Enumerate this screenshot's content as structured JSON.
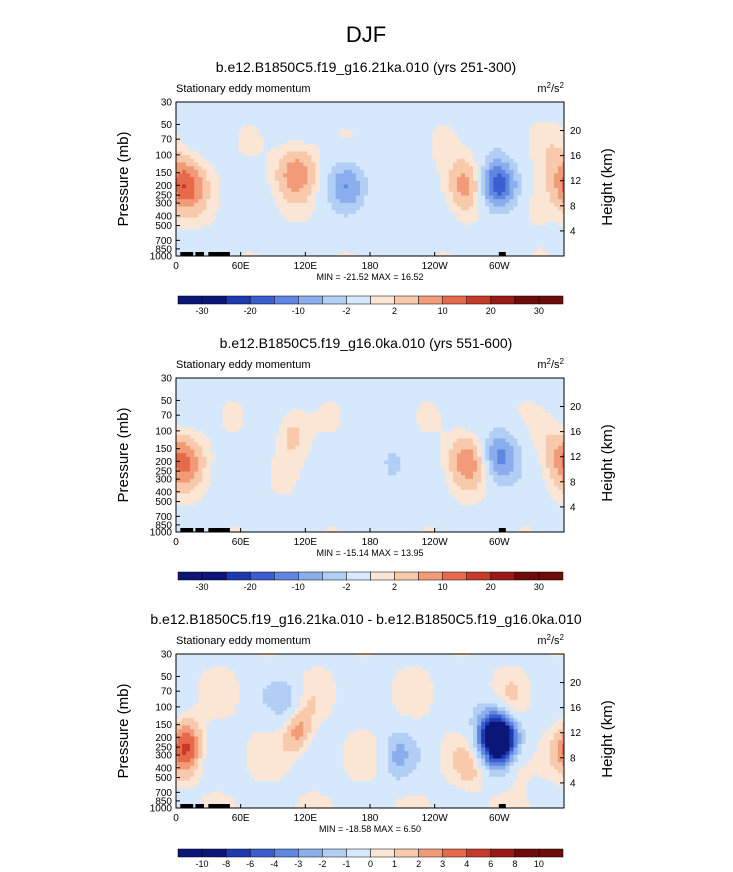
{
  "figure": {
    "title": "DJF"
  },
  "colors": {
    "frame": "#000000",
    "palette_descriptor": "blue-white-red diverging (NCL BlueWhiteOrangeRed style)"
  },
  "chart_data": [
    {
      "type": "heatmap",
      "title": "b.e12.B1850C5.f19_g16.21ka.010 (yrs 251-300)",
      "subtitle_left": "Stationary eddy momentum",
      "units": "m²/s²",
      "units_base": "m",
      "units_exp": "2",
      "units_sep": "/s",
      "units_exp2": "2",
      "xlabel": "",
      "ylabel": "Pressure (mb)",
      "ylabel_right": "Height (km)",
      "x_ticks": [
        "0",
        "60E",
        "120E",
        "180",
        "120W",
        "60W"
      ],
      "xlim": [
        0,
        360
      ],
      "y_ticks": [
        "30",
        "50",
        "70",
        "100",
        "150",
        "200",
        "250",
        "300",
        "400",
        "500",
        "700",
        "850",
        "1000"
      ],
      "y_ticks_right": [
        "20",
        "16",
        "12",
        "8",
        "4"
      ],
      "ylim": [
        1000,
        30
      ],
      "y_scale": "log",
      "minmax_text": "MIN = -21.52  MAX =  16.52",
      "min": -21.52,
      "max": 16.52,
      "contour_levels": [
        "-30",
        "-20",
        "-10",
        "-2",
        "2",
        "10",
        "20",
        "30"
      ],
      "features": [
        {
          "lon": 8,
          "p": 200,
          "value": 16.5,
          "kind": "max"
        },
        {
          "lon": 112,
          "p": 150,
          "value": 12
        },
        {
          "lon": 158,
          "p": 200,
          "value": -12
        },
        {
          "lon": 203,
          "p": 300,
          "value": -4
        },
        {
          "lon": 270,
          "p": 200,
          "value": 12
        },
        {
          "lon": 298,
          "p": 200,
          "value": -21.5,
          "kind": "min"
        },
        {
          "lon": 335,
          "p": 300,
          "value": 4
        },
        {
          "lon": 350,
          "p": 100,
          "value": 3
        }
      ]
    },
    {
      "type": "heatmap",
      "title": "b.e12.B1850C5.f19_g16.0ka.010 (yrs 551-600)",
      "subtitle_left": "Stationary eddy momentum",
      "units": "m²/s²",
      "units_base": "m",
      "units_exp": "2",
      "units_sep": "/s",
      "units_exp2": "2",
      "xlabel": "",
      "ylabel": "Pressure (mb)",
      "ylabel_right": "Height (km)",
      "x_ticks": [
        "0",
        "60E",
        "120E",
        "180",
        "120W",
        "60W"
      ],
      "xlim": [
        0,
        360
      ],
      "y_ticks": [
        "30",
        "50",
        "70",
        "100",
        "150",
        "200",
        "250",
        "300",
        "400",
        "500",
        "700",
        "850",
        "1000"
      ],
      "y_ticks_right": [
        "20",
        "16",
        "12",
        "8",
        "4"
      ],
      "ylim": [
        1000,
        30
      ],
      "y_scale": "log",
      "minmax_text": "MIN = -15.14  MAX =  13.95",
      "min": -15.14,
      "max": 13.95,
      "contour_levels": [
        "-30",
        "-20",
        "-10",
        "-2",
        "2",
        "10",
        "20",
        "30"
      ],
      "features": [
        {
          "lon": 6,
          "p": 200,
          "value": 13.9,
          "kind": "max"
        },
        {
          "lon": 108,
          "p": 110,
          "value": 6
        },
        {
          "lon": 200,
          "p": 220,
          "value": -6
        },
        {
          "lon": 272,
          "p": 200,
          "value": 12
        },
        {
          "lon": 300,
          "p": 180,
          "value": -15.1,
          "kind": "min"
        },
        {
          "lon": 345,
          "p": 120,
          "value": 3
        }
      ]
    },
    {
      "type": "heatmap",
      "title": "b.e12.B1850C5.f19_g16.21ka.010 - b.e12.B1850C5.f19_g16.0ka.010",
      "subtitle_left": "Stationary eddy momentum",
      "units": "m²/s²",
      "units_base": "m",
      "units_exp": "2",
      "units_sep": "/s",
      "units_exp2": "2",
      "xlabel": "",
      "ylabel": "Pressure (mb)",
      "ylabel_right": "Height (km)",
      "x_ticks": [
        "0",
        "60E",
        "120E",
        "180",
        "120W",
        "60W"
      ],
      "xlim": [
        0,
        360
      ],
      "y_ticks": [
        "30",
        "50",
        "70",
        "100",
        "150",
        "200",
        "250",
        "300",
        "400",
        "500",
        "700",
        "850",
        "1000"
      ],
      "y_ticks_right": [
        "20",
        "16",
        "12",
        "8",
        "4"
      ],
      "ylim": [
        1000,
        30
      ],
      "y_scale": "log",
      "minmax_text": "MIN = -18.58  MAX =   6.50",
      "min": -18.58,
      "max": 6.5,
      "contour_levels": [
        "-10",
        "-8",
        "-6",
        "-4",
        "-3",
        "-2",
        "-1",
        "0",
        "1",
        "2",
        "3",
        "4",
        "6",
        "8",
        "10"
      ],
      "features": [
        {
          "lon": 10,
          "p": 250,
          "value": 6.5,
          "kind": "max"
        },
        {
          "lon": 105,
          "p": 100,
          "value": -4
        },
        {
          "lon": 112,
          "p": 160,
          "value": 5.5
        },
        {
          "lon": 205,
          "p": 300,
          "value": -3
        },
        {
          "lon": 300,
          "p": 200,
          "value": -18.6,
          "kind": "min"
        },
        {
          "lon": 310,
          "p": 130,
          "value": 3
        },
        {
          "lon": 315,
          "p": 300,
          "value": 4
        },
        {
          "lon": 275,
          "p": 400,
          "value": 2
        }
      ]
    }
  ]
}
